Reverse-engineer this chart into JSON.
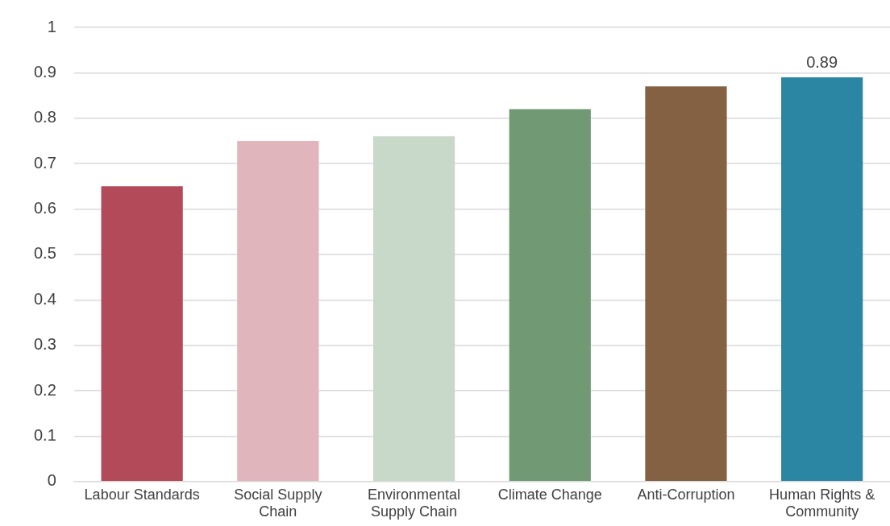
{
  "chart_data": {
    "type": "bar",
    "categories": [
      "Labour Standards",
      "Social Supply Chain",
      "Environmental Supply Chain",
      "Climate Change",
      "Anti-Corruption",
      "Human Rights & Community"
    ],
    "values": [
      0.65,
      0.75,
      0.76,
      0.82,
      0.87,
      0.89
    ],
    "colors": [
      "#b24a5a",
      "#e0b5bc",
      "#c8d8c9",
      "#719a74",
      "#836142",
      "#2b86a4"
    ],
    "value_labels": [
      null,
      null,
      null,
      null,
      null,
      "0.89"
    ],
    "ylim": [
      0,
      1
    ],
    "yticks": [
      0,
      0.1,
      0.2,
      0.3,
      0.4,
      0.5,
      0.6,
      0.7,
      0.8,
      0.9,
      1
    ],
    "grid": "y",
    "legend": false
  }
}
